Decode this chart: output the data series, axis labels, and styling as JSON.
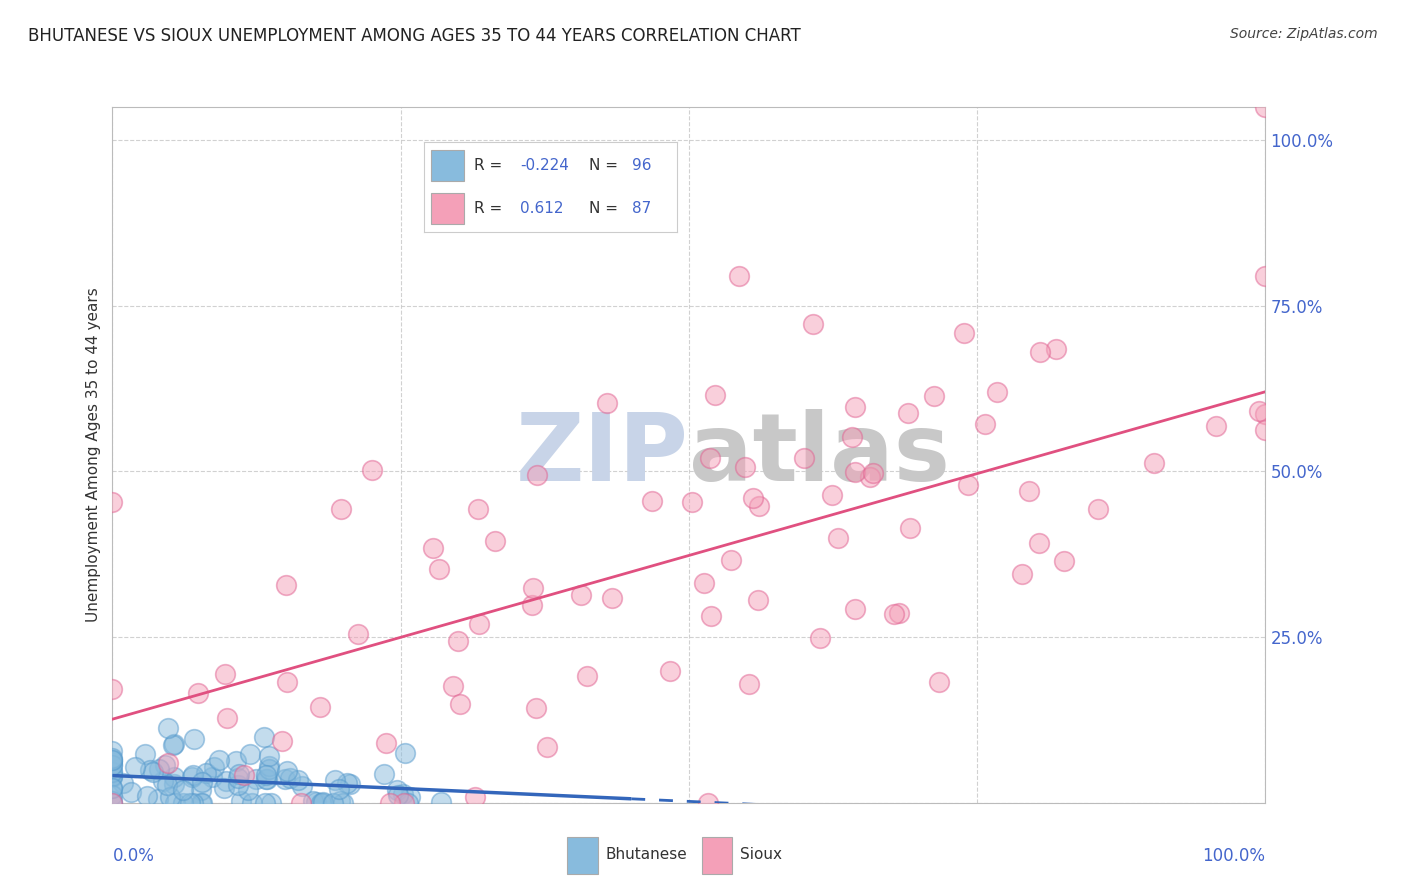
{
  "title": "BHUTANESE VS SIOUX UNEMPLOYMENT AMONG AGES 35 TO 44 YEARS CORRELATION CHART",
  "source_text": "Source: ZipAtlas.com",
  "ylabel": "Unemployment Among Ages 35 to 44 years",
  "bhutanese_R": -0.224,
  "bhutanese_N": 96,
  "sioux_R": 0.612,
  "sioux_N": 87,
  "blue_color": "#88bbdd",
  "pink_color": "#f4a0b8",
  "blue_edge_color": "#5599cc",
  "pink_edge_color": "#e06090",
  "blue_line_color": "#3366bb",
  "pink_line_color": "#e05080",
  "title_color": "#222222",
  "source_color": "#444444",
  "watermark_zip_color": "#c8d4e8",
  "watermark_atlas_color": "#c8c8c8",
  "tick_color": "#4466cc",
  "grid_color": "#cccccc",
  "background_color": "#ffffff",
  "legend_border_color": "#cccccc",
  "seed": 42
}
